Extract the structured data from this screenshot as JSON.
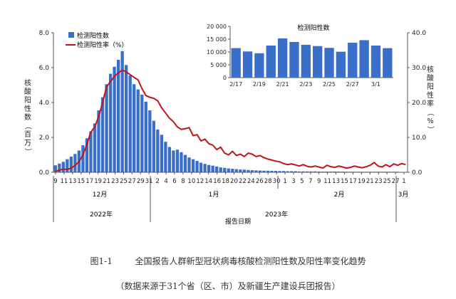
{
  "figure": {
    "caption_id": "图1-1",
    "caption_title": "全国报告人群新型冠状病毒核酸检测阳性数及阳性率变化趋势",
    "caption_note": "（数据来源于31个省（区、市）及新疆生产建设兵团报告）"
  },
  "chart_data": [
    {
      "type": "bar+line",
      "legend": {
        "bar": "检测阳性数",
        "line": "检测阳性率（%）",
        "placement": "top-left"
      },
      "ylabel_left": "核酸阳性数（百万）",
      "ylabel_right": "核酸阳性率（%）",
      "xlabel": "报告日期",
      "ylim_left": [
        0,
        8
      ],
      "ylim_right": [
        0,
        40
      ],
      "yticks_left": [
        "0.0",
        "2.0",
        "4.0",
        "6.0",
        "8.0"
      ],
      "yticks_right": [
        "0.0",
        "10.0",
        "20.0",
        "30.0",
        "40.0"
      ],
      "x_tick_labels": [
        "9",
        "11",
        "13",
        "15",
        "17",
        "19",
        "21",
        "23",
        "25",
        "27",
        "29",
        "31",
        "2",
        "4",
        "6",
        "8",
        "10",
        "12",
        "14",
        "16",
        "18",
        "20",
        "22",
        "24",
        "26",
        "28",
        "30",
        "1",
        "3",
        "5",
        "7",
        "9",
        "11",
        "13",
        "15",
        "17",
        "19",
        "21",
        "23",
        "25",
        "27",
        "1"
      ],
      "months": [
        "12月",
        "1月",
        "2月",
        "3月"
      ],
      "years": [
        "2022年",
        "2023年"
      ],
      "positive_count_millions": [
        0.4,
        0.5,
        0.6,
        0.75,
        0.9,
        1.05,
        1.25,
        1.55,
        1.95,
        2.35,
        2.8,
        3.55,
        4.3,
        5.05,
        5.65,
        6.05,
        6.45,
        6.95,
        6.15,
        5.55,
        5.05,
        4.75,
        4.45,
        4.05,
        3.55,
        2.95,
        2.45,
        2.15,
        1.75,
        1.45,
        1.25,
        1.3,
        1.15,
        1.0,
        0.85,
        0.75,
        0.65,
        0.55,
        0.48,
        0.42,
        0.38,
        0.33,
        0.28,
        0.25,
        0.22,
        0.2,
        0.18,
        0.16,
        0.15,
        0.13,
        0.12,
        0.11,
        0.1,
        0.09,
        0.09,
        0.08,
        0.08,
        0.07,
        0.07,
        0.06,
        0.06,
        0.06,
        0.05,
        0.05,
        0.05,
        0.05,
        0.05,
        0.04,
        0.04,
        0.04,
        0.04,
        0.04,
        0.04,
        0.04,
        0.03,
        0.03,
        0.03,
        0.03,
        0.03,
        0.03,
        0.03,
        0.03,
        0.03,
        0.03,
        0.03,
        0.03,
        0.03,
        0.03,
        0.02,
        0.02
      ],
      "positive_rate_percent": [
        0.3,
        0.6,
        0.9,
        0.8,
        1.2,
        2.0,
        3.0,
        5.0,
        8.0,
        11.5,
        13.0,
        16.0,
        20.0,
        24.5,
        26.0,
        27.5,
        28.5,
        29.3,
        28.8,
        28.0,
        27.2,
        26.5,
        24.0,
        22.0,
        21.5,
        21.2,
        20.5,
        18.5,
        17.0,
        15.5,
        14.5,
        13.0,
        12.3,
        12.5,
        12.8,
        10.5,
        10.8,
        9.0,
        9.5,
        8.2,
        7.8,
        6.5,
        7.2,
        5.5,
        5.0,
        6.0,
        4.8,
        5.2,
        4.5,
        5.5,
        5.2,
        4.5,
        4.8,
        4.2,
        3.8,
        3.5,
        3.2,
        3.0,
        2.5,
        2.2,
        2.4,
        2.1,
        1.8,
        2.2,
        1.7,
        1.5,
        1.8,
        1.5,
        1.2,
        2.0,
        1.6,
        1.4,
        1.8,
        1.5,
        1.2,
        1.4,
        1.8,
        1.5,
        1.3,
        1.6,
        2.0,
        2.8,
        1.8,
        1.5,
        2.2,
        1.6,
        2.4,
        2.0,
        2.5,
        2.2
      ]
    },
    {
      "type": "bar",
      "title": "检测阳性数",
      "ylim": [
        0,
        20000
      ],
      "yticks": [
        "0",
        "5 000",
        "10 000",
        "15 000",
        "20 000"
      ],
      "categories": [
        "2/17",
        "2/18",
        "2/19",
        "2/20",
        "2/21",
        "2/22",
        "2/23",
        "2/24",
        "2/25",
        "2/26",
        "2/27",
        "2/28",
        "3/1",
        "3/2"
      ],
      "x_tick_labels": [
        "2/17",
        "2/19",
        "2/21",
        "2/23",
        "2/25",
        "2/27",
        "3/1"
      ],
      "values": [
        11500,
        10200,
        9500,
        12500,
        15300,
        13900,
        12800,
        12300,
        11600,
        10100,
        13600,
        14600,
        12500,
        11500
      ]
    }
  ],
  "colors": {
    "bar": "#3a6fc9",
    "line": "#c0141b",
    "axis": "#555555",
    "text": "#222222"
  }
}
